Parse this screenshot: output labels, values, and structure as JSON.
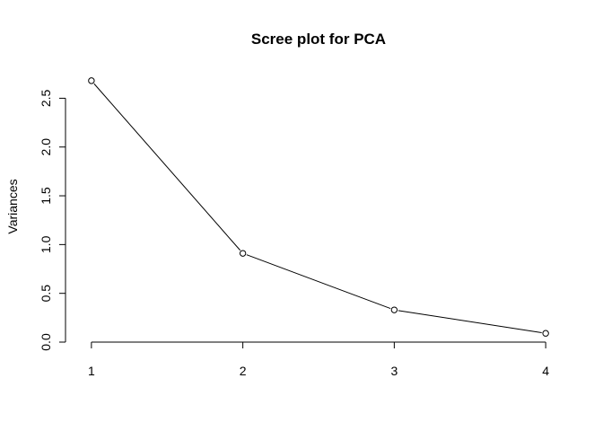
{
  "chart_data": {
    "type": "line",
    "title": "Scree plot for PCA",
    "xlabel": "",
    "ylabel": "Variances",
    "x": [
      1,
      2,
      3,
      4
    ],
    "values": [
      2.68,
      0.91,
      0.33,
      0.09
    ],
    "xticks": [
      1,
      2,
      3,
      4
    ],
    "xtick_labels": [
      "1",
      "2",
      "3",
      "4"
    ],
    "yticks": [
      0.0,
      0.5,
      1.0,
      1.5,
      2.0,
      2.5
    ],
    "ytick_labels": [
      "0.0",
      "0.5",
      "1.0",
      "1.5",
      "2.0",
      "2.5"
    ],
    "xlim": [
      0.9,
      4.1
    ],
    "ylim": [
      0.0,
      2.78
    ],
    "grid": false,
    "legend": "none",
    "line_color": "#000000",
    "marker": "open-circle"
  }
}
